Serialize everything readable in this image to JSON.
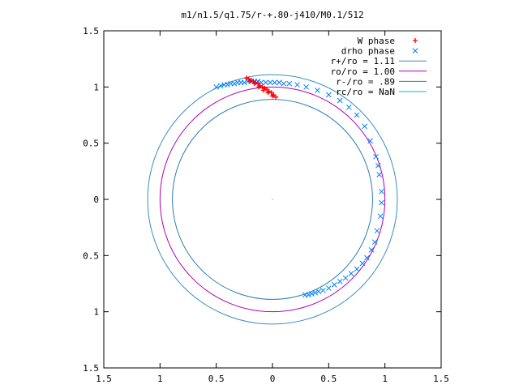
{
  "chart_data": {
    "type": "scatter",
    "title": "m1/n1.5/q1.75/r-+.80-j410/M0.1/512",
    "xlabel": "",
    "ylabel": "",
    "xlim": [
      -1.5,
      1.5
    ],
    "ylim": [
      -1.5,
      1.5
    ],
    "x_ticks": [
      -1.5,
      -1,
      -0.5,
      0,
      0.5,
      1,
      1.5
    ],
    "y_ticks": [
      -1.5,
      -1,
      -0.5,
      0,
      0.5,
      1,
      1.5
    ],
    "x_tick_labels": [
      "1.5",
      "1",
      "0.5",
      "0",
      "0.5",
      "1",
      "1.5"
    ],
    "y_tick_labels": [
      "1.5",
      "1",
      "0.5",
      "0",
      "0.5",
      "1",
      "1.5"
    ],
    "grid": false,
    "legend_position": "top-right",
    "colors": {
      "w_phase": "#ff0000",
      "drho_phase": "#0080ff",
      "r_plus": "#3a8fbf",
      "r_o": "#b000b0",
      "r_minus": "#2a7fb0",
      "r_c": "#00c0c0"
    },
    "series": [
      {
        "name": "W phase",
        "marker": "plus",
        "points": [
          [
            -0.23,
            1.08
          ],
          [
            -0.21,
            1.07
          ],
          [
            -0.19,
            1.06
          ],
          [
            -0.17,
            1.05
          ],
          [
            -0.15,
            1.04
          ],
          [
            -0.13,
            1.03
          ],
          [
            -0.11,
            1.01
          ],
          [
            -0.09,
            1.0
          ],
          [
            -0.07,
            0.99
          ],
          [
            -0.05,
            0.98
          ],
          [
            -0.03,
            0.96
          ],
          [
            -0.01,
            0.95
          ],
          [
            0.01,
            0.93
          ],
          [
            0.03,
            0.91
          ],
          [
            -0.2,
            1.05
          ],
          [
            -0.16,
            1.03
          ],
          [
            -0.12,
            1.0
          ],
          [
            -0.08,
            0.97
          ],
          [
            -0.04,
            0.95
          ],
          [
            0.0,
            0.92
          ]
        ]
      },
      {
        "name": "drho phase",
        "marker": "cross",
        "points": [
          [
            -0.5,
            1.0
          ],
          [
            -0.46,
            1.01
          ],
          [
            -0.43,
            1.02
          ],
          [
            -0.4,
            1.02
          ],
          [
            -0.37,
            1.03
          ],
          [
            -0.34,
            1.03
          ],
          [
            -0.31,
            1.04
          ],
          [
            -0.28,
            1.04
          ],
          [
            -0.25,
            1.04
          ],
          [
            -0.22,
            1.05
          ],
          [
            -0.19,
            1.05
          ],
          [
            -0.16,
            1.05
          ],
          [
            -0.13,
            1.05
          ],
          [
            -0.1,
            1.04
          ],
          [
            -0.06,
            1.04
          ],
          [
            -0.02,
            1.04
          ],
          [
            0.02,
            1.04
          ],
          [
            0.06,
            1.04
          ],
          [
            0.1,
            1.03
          ],
          [
            0.15,
            1.03
          ],
          [
            0.22,
            1.02
          ],
          [
            0.3,
            1.0
          ],
          [
            0.4,
            0.97
          ],
          [
            0.5,
            0.93
          ],
          [
            0.6,
            0.88
          ],
          [
            0.68,
            0.82
          ],
          [
            0.75,
            0.75
          ],
          [
            0.82,
            0.65
          ],
          [
            0.87,
            0.52
          ],
          [
            0.92,
            0.38
          ],
          [
            0.94,
            0.3
          ],
          [
            0.95,
            0.22
          ],
          [
            0.97,
            0.07
          ],
          [
            0.97,
            -0.03
          ],
          [
            0.96,
            -0.15
          ],
          [
            0.93,
            -0.28
          ],
          [
            0.91,
            -0.38
          ],
          [
            0.88,
            -0.45
          ],
          [
            0.84,
            -0.52
          ],
          [
            0.8,
            -0.57
          ],
          [
            0.75,
            -0.62
          ],
          [
            0.7,
            -0.66
          ],
          [
            0.65,
            -0.7
          ],
          [
            0.6,
            -0.73
          ],
          [
            0.55,
            -0.76
          ],
          [
            0.5,
            -0.79
          ],
          [
            0.45,
            -0.81
          ],
          [
            0.41,
            -0.82
          ],
          [
            0.38,
            -0.83
          ],
          [
            0.35,
            -0.84
          ],
          [
            0.32,
            -0.85
          ],
          [
            0.29,
            -0.85
          ]
        ]
      },
      {
        "name": "r+/ro = 1.11",
        "marker": "line",
        "radius": 1.11
      },
      {
        "name": "ro/ro = 1.00",
        "marker": "line",
        "radius": 1.0
      },
      {
        "name": "r-/ro = .89",
        "marker": "line",
        "radius": 0.89
      },
      {
        "name": "rc/ro = NaN",
        "marker": "line",
        "radius": null
      }
    ]
  }
}
